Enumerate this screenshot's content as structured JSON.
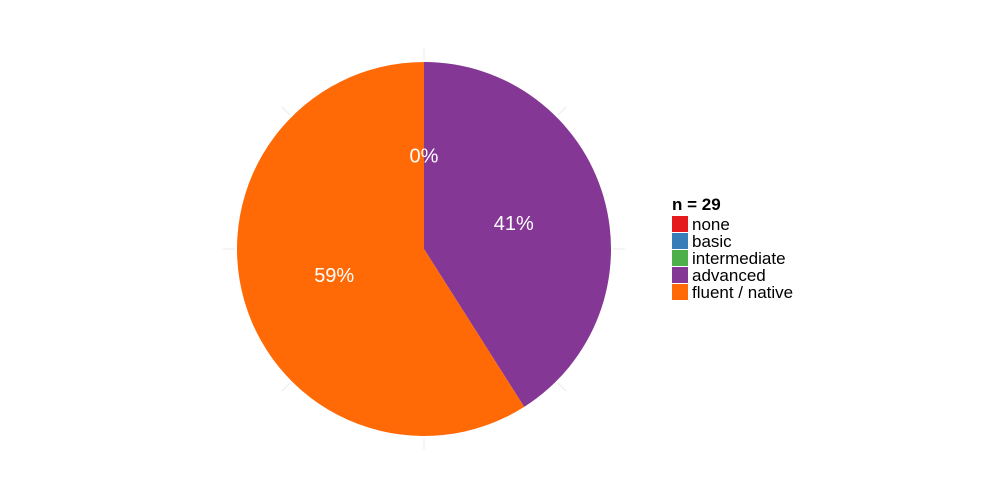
{
  "chart_data": {
    "type": "pie",
    "legend_title": "n = 29",
    "legend_position": "right",
    "start": "top",
    "direction": "clockwise",
    "categories": [
      "none",
      "basic",
      "intermediate",
      "advanced",
      "fluent / native"
    ],
    "values": [
      0,
      0,
      0,
      41,
      59
    ],
    "labels": [
      "0%",
      "0%",
      "0%",
      "41%",
      "59%"
    ],
    "colors": [
      "#e41a1c",
      "#377eb8",
      "#4daf4a",
      "#843794",
      "#ff6a07"
    ]
  }
}
